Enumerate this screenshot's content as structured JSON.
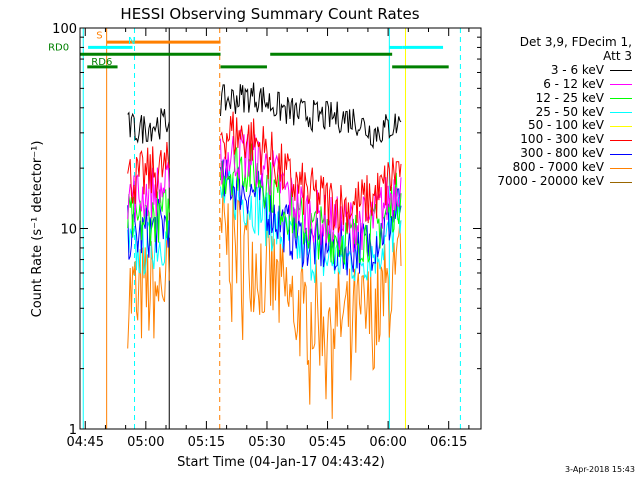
{
  "chart_data": {
    "type": "line",
    "title": "HESSI Observing Summary Count Rates",
    "xlabel": "Start Time (04-Jan-17 04:43:42)",
    "ylabel": "Count Rate (s⁻¹ detector⁻¹)",
    "yscale": "log",
    "ylim": [
      1,
      100
    ],
    "xlim": [
      "04:43:42",
      "06:23:00"
    ],
    "x_ticks": [
      "04:45",
      "05:00",
      "05:15",
      "05:30",
      "05:45",
      "06:00",
      "06:15"
    ],
    "x_tick_minutes": [
      285,
      300,
      315,
      330,
      345,
      360,
      375
    ],
    "y_ticks": [
      "1",
      "10",
      "100"
    ],
    "y_tick_values": [
      1,
      10,
      100
    ],
    "legend_header": [
      "Det 3,9, FDecim 1,",
      "Att 3"
    ],
    "legend_position": "right",
    "series": [
      {
        "name": "3 - 6 keV",
        "color": "#000000",
        "segments": [
          {
            "x": [
              295.5,
              298,
              302,
              305.8
            ],
            "y": [
              32,
              31,
              33,
              34
            ]
          },
          {
            "x": [
              318.5,
              321,
              324,
              327,
              330,
              333,
              336,
              340,
              344,
              348,
              352,
              356,
              358,
              360,
              363.2
            ],
            "y": [
              43,
              44,
              45,
              46,
              43,
              40,
              38,
              37,
              36,
              36,
              35,
              30,
              31,
              32,
              34
            ]
          }
        ]
      },
      {
        "name": "6 - 12 keV",
        "color": "#ff00ff",
        "segments": [
          {
            "x": [
              295.5,
              298,
              302,
              305.8
            ],
            "y": [
              15,
              14.5,
              15.5,
              16
            ]
          },
          {
            "x": [
              318.5,
              321,
              324,
              327,
              330,
              333,
              336,
              340,
              344,
              348,
              352,
              356,
              358,
              360,
              363.2
            ],
            "y": [
              22,
              23,
              24,
              22,
              20,
              17,
              14,
              12,
              11,
              10.5,
              10.5,
              11,
              12.5,
              14,
              18
            ]
          }
        ]
      },
      {
        "name": "12 - 25 keV",
        "color": "#00ff00",
        "segments": [
          {
            "x": [
              295.5,
              298,
              302,
              305.8
            ],
            "y": [
              11,
              10.5,
              11.5,
              12
            ]
          },
          {
            "x": [
              318.5,
              321,
              324,
              327,
              330,
              333,
              336,
              340,
              344,
              348,
              352,
              356,
              358,
              360,
              363.2
            ],
            "y": [
              19,
              20,
              21,
              19,
              17,
              14,
              12,
              10,
              9.5,
              9,
              9,
              9.5,
              10.5,
              12,
              15
            ]
          }
        ]
      },
      {
        "name": "25 - 50 keV",
        "color": "#00ffff",
        "segments": [
          {
            "x": [
              295.5,
              298,
              302,
              305.8
            ],
            "y": [
              8,
              7.5,
              8.5,
              9
            ]
          },
          {
            "x": [
              318.5,
              321,
              324,
              327,
              330,
              333,
              336,
              340,
              344,
              348,
              352,
              356,
              358,
              360,
              363.2
            ],
            "y": [
              14,
              15,
              14,
              13,
              11,
              9.5,
              8.5,
              7.5,
              7,
              7,
              7,
              7.5,
              8,
              9,
              11
            ]
          }
        ]
      },
      {
        "name": "50 - 100 keV",
        "color": "#ffff00",
        "segments": []
      },
      {
        "name": "100 - 300 keV",
        "color": "#ff0000",
        "segments": [
          {
            "x": [
              295.5,
              298,
              302,
              305.8
            ],
            "y": [
              18,
              17.5,
              19,
              20
            ]
          },
          {
            "x": [
              318.5,
              321,
              324,
              327,
              330,
              333,
              336,
              340,
              344,
              348,
              352,
              356,
              358,
              360,
              363.2
            ],
            "y": [
              30,
              30,
              29,
              27,
              24,
              20,
              17,
              15,
              14,
              13,
              13,
              14,
              15,
              17,
              21
            ]
          }
        ]
      },
      {
        "name": "300 - 800 keV",
        "color": "#0000ff",
        "segments": [
          {
            "x": [
              295.5,
              298,
              302,
              305.8
            ],
            "y": [
              9.5,
              9,
              10,
              11
            ]
          },
          {
            "x": [
              318.5,
              321,
              324,
              327,
              330,
              333,
              336,
              340,
              344,
              348,
              352,
              356,
              358,
              360,
              363.2
            ],
            "y": [
              16,
              17,
              16,
              15,
              13,
              11,
              9.5,
              8.5,
              8,
              8,
              8,
              8.5,
              9.5,
              10.5,
              13
            ]
          }
        ]
      },
      {
        "name": "800 - 7000 keV",
        "color": "#ff8000",
        "segments": [
          {
            "x": [
              295.5,
              298,
              302,
              305.8
            ],
            "y": [
              4.8,
              4.5,
              5,
              5.5
            ]
          },
          {
            "x": [
              318.5,
              321,
              324,
              327,
              330,
              333,
              336,
              340,
              344,
              348,
              352,
              356,
              358,
              360,
              363.2
            ],
            "y": [
              9.5,
              9,
              8,
              7,
              6,
              5,
              4.2,
              3.8,
              3.6,
              3.5,
              3.5,
              3.7,
              4.2,
              5,
              6.5
            ]
          }
        ]
      },
      {
        "name": "7000 - 20000 keV",
        "color": "#996600",
        "segments": []
      }
    ],
    "annotations": [
      {
        "label": "S",
        "color": "#ff7f00",
        "lines": [
          {
            "x1": 290.3,
            "x2": 318.5,
            "y": 85
          }
        ]
      },
      {
        "label": "N",
        "color": "#00ffff",
        "lines": [
          {
            "x1": 285.7,
            "x2": 296.7,
            "y": 80
          },
          {
            "x1": 360.3,
            "x2": 363.5,
            "y": 80
          },
          {
            "x1": 363.5,
            "x2": 373.6,
            "y": 80
          }
        ]
      },
      {
        "label": "RD0",
        "color": "#008000",
        "lines": [
          {
            "x1": 283.7,
            "x2": 318.5,
            "y": 74
          },
          {
            "x1": 330.8,
            "x2": 361,
            "y": 74
          }
        ]
      },
      {
        "label": "RD6",
        "color": "#008000",
        "lines": [
          {
            "x1": 285.5,
            "x2": 293,
            "y": 64
          },
          {
            "x1": 318.5,
            "x2": 330,
            "y": 64
          },
          {
            "x1": 361,
            "x2": 375,
            "y": 64
          }
        ]
      }
    ],
    "vlines": [
      {
        "x": 284.5,
        "color": "#00ffff",
        "style": "solid"
      },
      {
        "x": 290.3,
        "color": "#ff7f00",
        "style": "solid"
      },
      {
        "x": 297.2,
        "color": "#00ffff",
        "style": "dashed"
      },
      {
        "x": 305.8,
        "color": "#000000",
        "style": "solid"
      },
      {
        "x": 318.3,
        "color": "#ff7f00",
        "style": "dashed"
      },
      {
        "x": 360.3,
        "color": "#00ffff",
        "style": "solid"
      },
      {
        "x": 364.3,
        "color": "#ffff00",
        "style": "solid"
      },
      {
        "x": 377.9,
        "color": "#00ffff",
        "style": "dashed"
      }
    ],
    "grid": false
  },
  "timestamp": "3-Apr-2018 15:43"
}
